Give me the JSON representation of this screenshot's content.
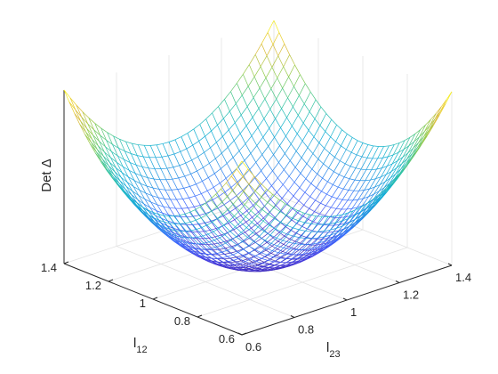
{
  "chart_data": {
    "type": "surface-mesh",
    "title": "",
    "xlabel": {
      "main": "l",
      "sub": "12"
    },
    "ylabel": {
      "main": "l",
      "sub": "23"
    },
    "zlabel": "Det Δ",
    "x_ticks": [
      "0.6",
      "0.8",
      "1",
      "1.2",
      "1.4"
    ],
    "y_ticks": [
      "0.6",
      "0.8",
      "1",
      "1.2",
      "1.4"
    ],
    "xlim": [
      0.6,
      1.4
    ],
    "ylim": [
      0.6,
      1.4
    ],
    "grid": true,
    "surface": {
      "model": "paraboloid",
      "center": [
        1.0,
        1.0
      ],
      "z_min": 0.0,
      "z_corner_max": 1.0,
      "mesh_lines": 35,
      "colormap": "parula"
    }
  }
}
